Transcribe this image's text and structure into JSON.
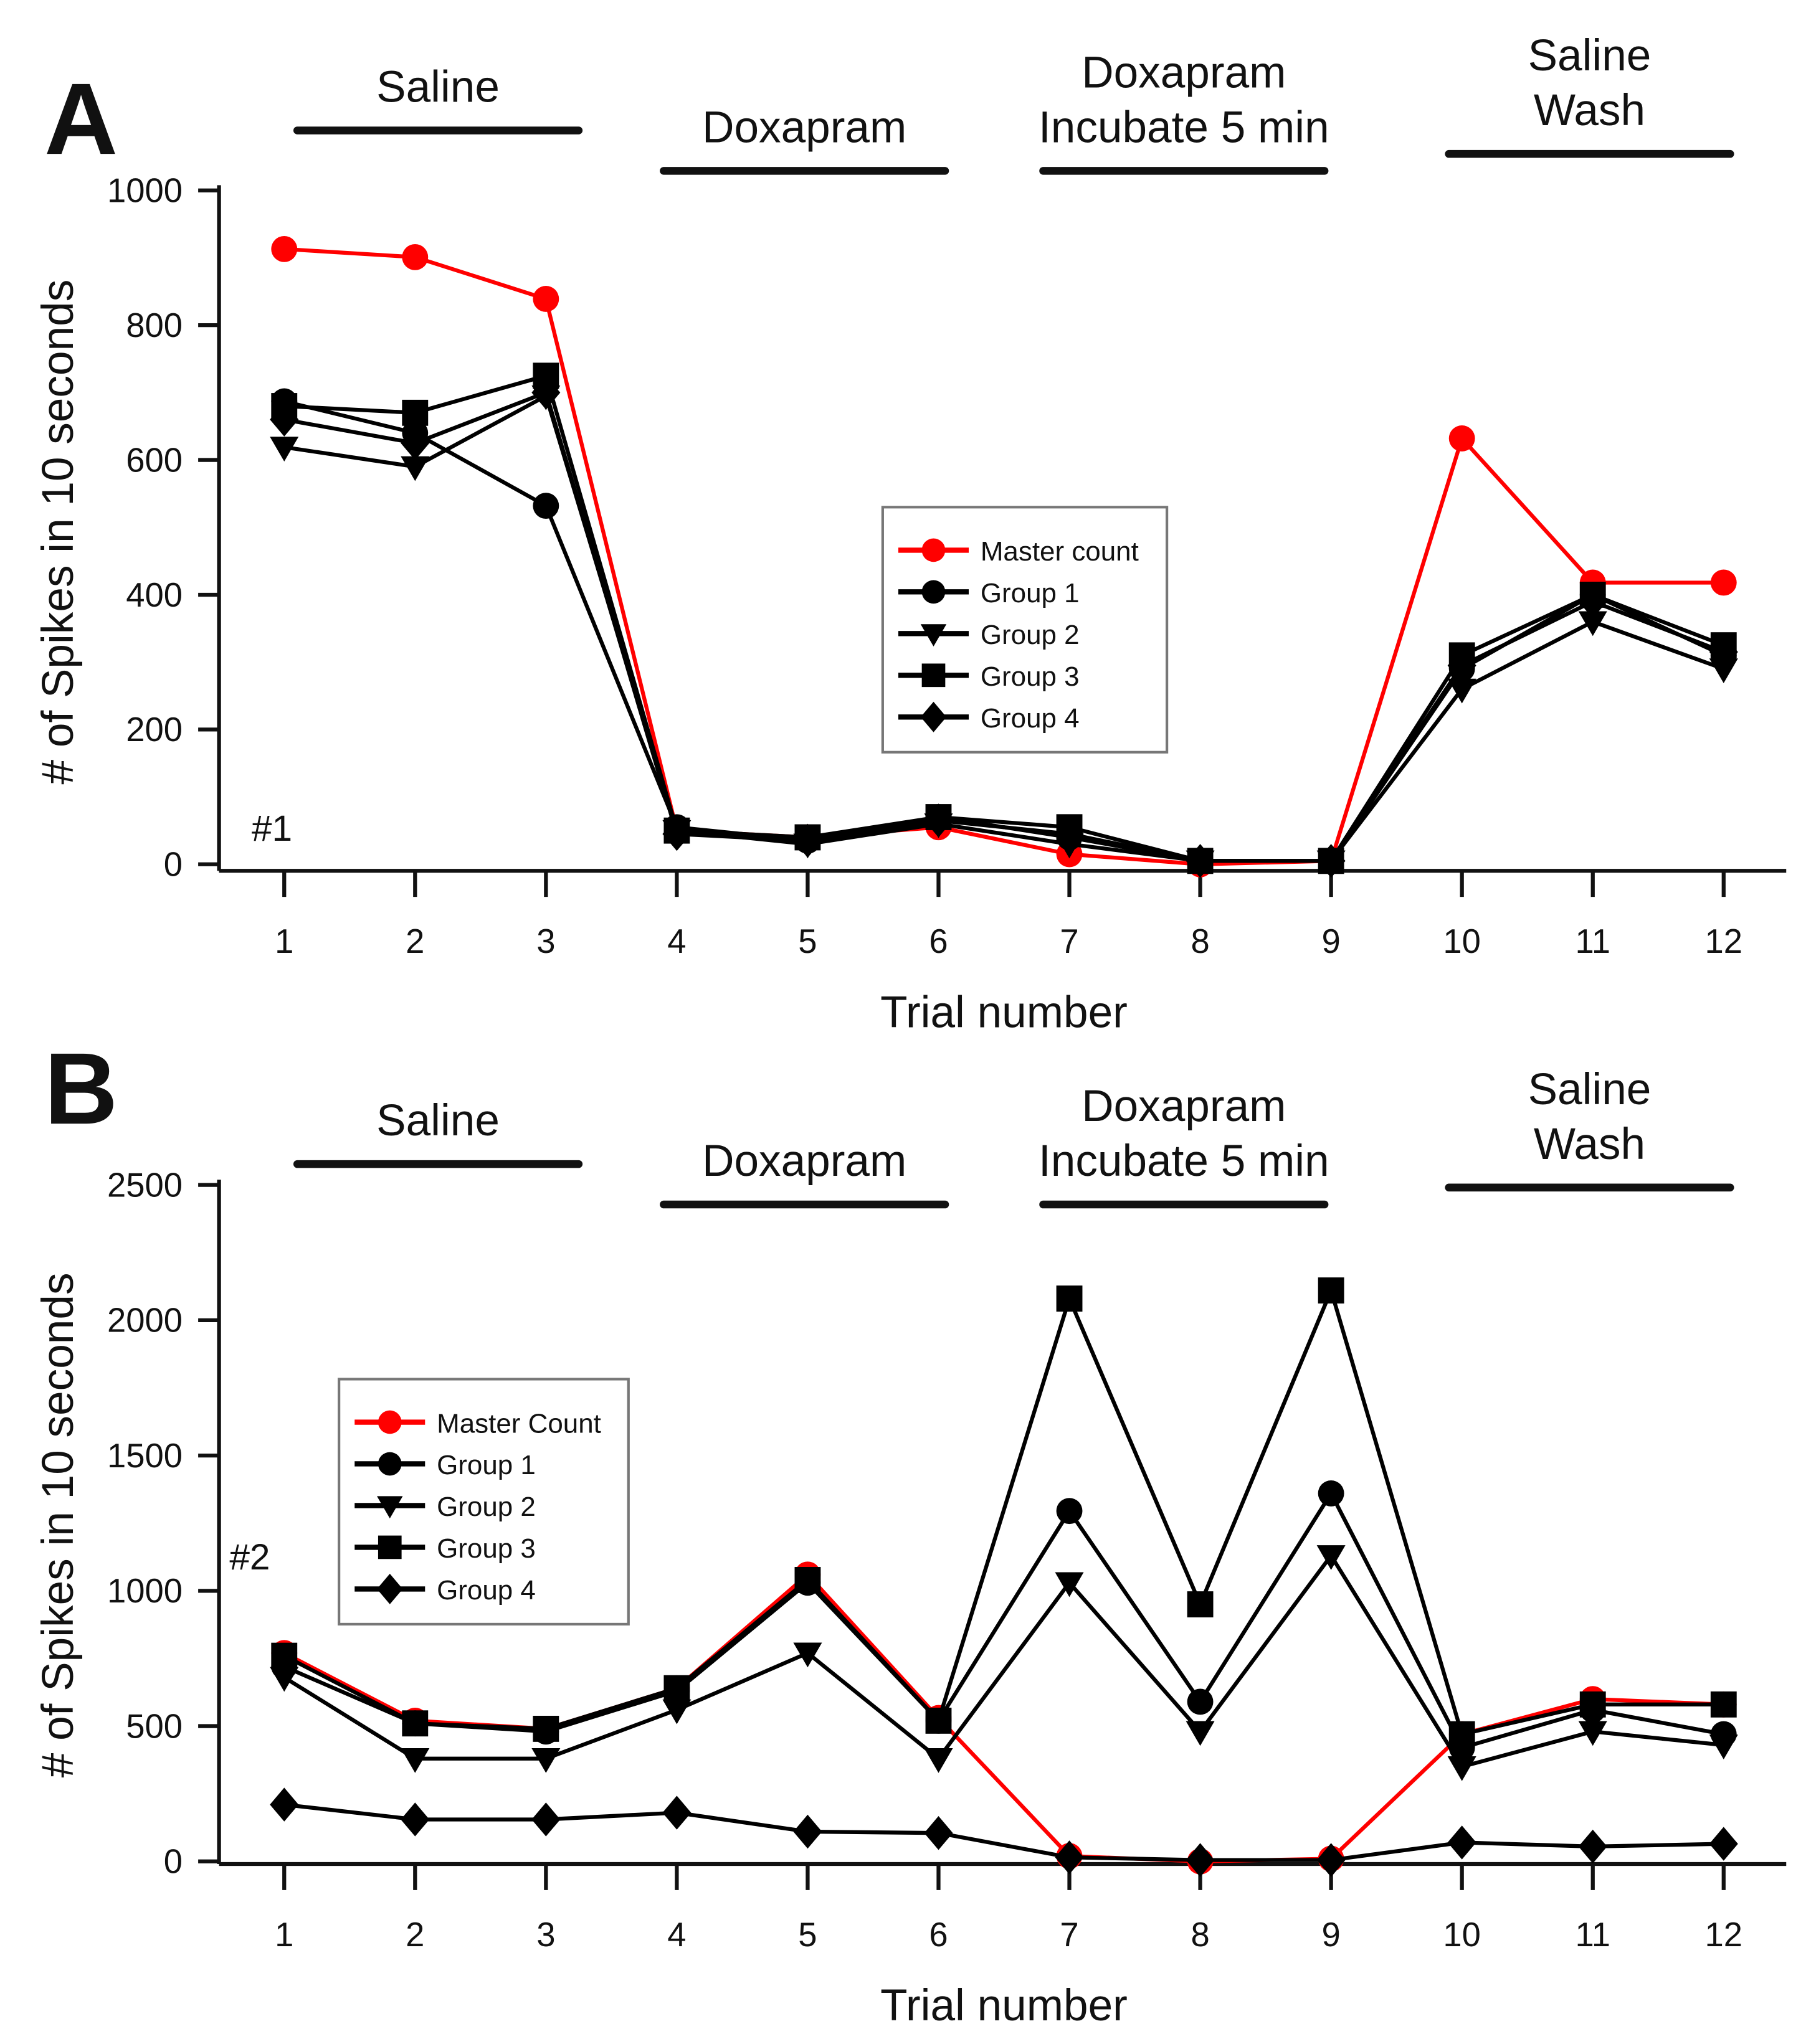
{
  "chart_data": [
    {
      "type": "line",
      "panel_label": "A",
      "annotation": "#1",
      "xlabel": "Trial number",
      "ylabel": "# of Spikes in 10 seconds",
      "x": [
        1,
        2,
        3,
        4,
        5,
        6,
        7,
        8,
        9,
        10,
        11,
        12
      ],
      "ylim": [
        0,
        1000
      ],
      "yticks": [
        0,
        200,
        400,
        600,
        800,
        1000
      ],
      "legend_placement": "center-right",
      "phases": [
        {
          "label": [
            "Saline"
          ],
          "from": 1.1,
          "to": 3.25
        },
        {
          "label": [
            "Doxapram"
          ],
          "from": 3.9,
          "to": 6.05
        },
        {
          "label": [
            "Doxapram",
            "Incubate 5 min"
          ],
          "from": 6.8,
          "to": 8.95
        },
        {
          "label": [
            "Saline",
            "Wash"
          ],
          "from": 9.9,
          "to": 12.05
        }
      ],
      "series": [
        {
          "name": "Master count",
          "marker": "circle",
          "color": "#ff0000",
          "values": [
            913,
            901,
            839,
            50,
            40,
            55,
            15,
            0,
            5,
            632,
            418,
            418
          ]
        },
        {
          "name": "Group 1",
          "marker": "circle",
          "color": "#000000",
          "values": [
            687,
            640,
            532,
            55,
            35,
            70,
            40,
            5,
            5,
            290,
            400,
            310
          ]
        },
        {
          "name": "Group 2",
          "marker": "triangle-down",
          "color": "#000000",
          "values": [
            619,
            590,
            695,
            50,
            30,
            60,
            30,
            5,
            5,
            260,
            360,
            290
          ]
        },
        {
          "name": "Group 3",
          "marker": "square",
          "color": "#000000",
          "values": [
            680,
            670,
            725,
            50,
            40,
            70,
            55,
            5,
            5,
            310,
            400,
            325
          ]
        },
        {
          "name": "Group 4",
          "marker": "diamond",
          "color": "#000000",
          "values": [
            660,
            625,
            700,
            45,
            35,
            65,
            45,
            5,
            5,
            295,
            390,
            315
          ]
        }
      ]
    },
    {
      "type": "line",
      "panel_label": "B",
      "annotation": "#2",
      "xlabel": "Trial number",
      "ylabel": "# of Spikes in 10 seconds",
      "x": [
        1,
        2,
        3,
        4,
        5,
        6,
        7,
        8,
        9,
        10,
        11,
        12
      ],
      "ylim": [
        0,
        2500
      ],
      "yticks": [
        0,
        500,
        1000,
        1500,
        2000,
        2500
      ],
      "legend_placement": "center-left",
      "phases": [
        {
          "label": [
            "Saline"
          ],
          "from": 1.1,
          "to": 3.25
        },
        {
          "label": [
            "Doxapram"
          ],
          "from": 3.9,
          "to": 6.05
        },
        {
          "label": [
            "Doxapram",
            "Incubate 5 min"
          ],
          "from": 6.8,
          "to": 8.95
        },
        {
          "label": [
            "Saline",
            "Wash"
          ],
          "from": 9.9,
          "to": 12.05
        }
      ],
      "series": [
        {
          "name": "Master Count",
          "marker": "circle",
          "color": "#ff0000",
          "values": [
            770,
            520,
            490,
            640,
            1060,
            530,
            20,
            0,
            10,
            470,
            600,
            580
          ]
        },
        {
          "name": "Group 1",
          "marker": "circle",
          "color": "#000000",
          "values": [
            720,
            510,
            480,
            630,
            1030,
            520,
            1295,
            590,
            1360,
            420,
            560,
            470
          ]
        },
        {
          "name": "Group 2",
          "marker": "triangle-down",
          "color": "#000000",
          "values": [
            680,
            380,
            380,
            560,
            770,
            380,
            1030,
            480,
            1130,
            350,
            480,
            430
          ]
        },
        {
          "name": "Group 3",
          "marker": "square",
          "color": "#000000",
          "values": [
            760,
            510,
            490,
            640,
            1040,
            520,
            2080,
            950,
            2110,
            470,
            580,
            580
          ]
        },
        {
          "name": "Group 4",
          "marker": "diamond",
          "color": "#000000",
          "values": [
            210,
            155,
            155,
            180,
            110,
            105,
            15,
            5,
            5,
            70,
            55,
            65
          ]
        }
      ]
    }
  ]
}
